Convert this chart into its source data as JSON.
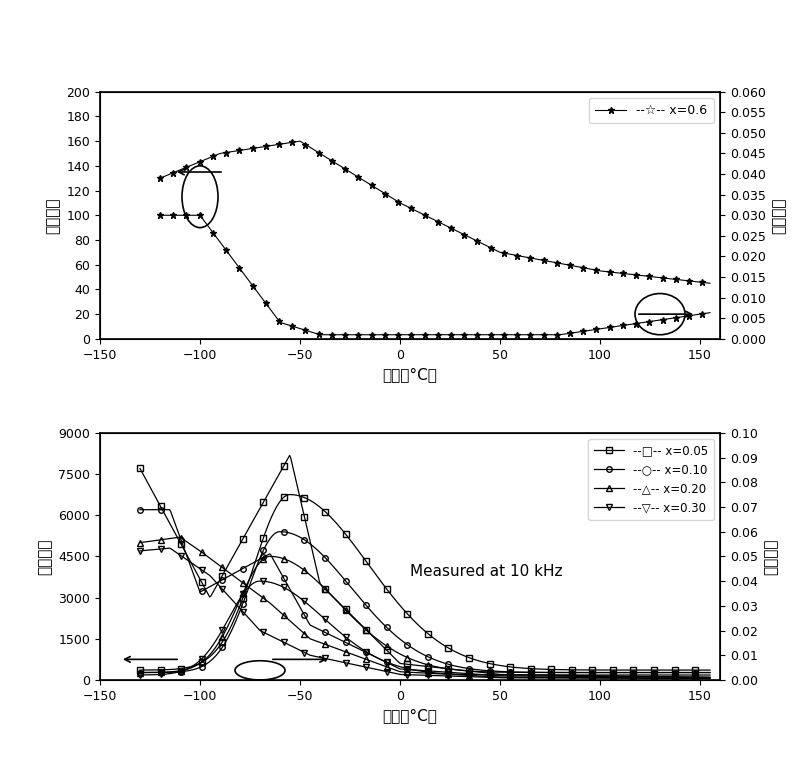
{
  "top": {
    "xlim": [
      -150,
      160
    ],
    "yleft_lim": [
      0,
      200
    ],
    "yright_lim": [
      0.0,
      0.06
    ],
    "yleft_ticks": [
      0,
      20,
      40,
      60,
      80,
      100,
      120,
      140,
      160,
      180,
      200
    ],
    "yright_ticks": [
      0.0,
      0.005,
      0.01,
      0.015,
      0.02,
      0.025,
      0.03,
      0.035,
      0.04,
      0.045,
      0.05,
      0.055,
      0.06
    ],
    "xticks": [
      -150,
      -100,
      -50,
      0,
      50,
      100,
      150
    ],
    "xlabel": "温度（°C）",
    "ylabel_left": "介电常数",
    "ylabel_right": "介电损耗",
    "legend_label": "--☆-- x=0.6"
  },
  "bottom": {
    "xlim": [
      -150,
      160
    ],
    "yleft_lim": [
      0,
      9000
    ],
    "yright_lim": [
      0.0,
      0.1
    ],
    "yleft_ticks": [
      0,
      1500,
      3000,
      4500,
      6000,
      7500,
      9000
    ],
    "yright_ticks": [
      0.0,
      0.01,
      0.02,
      0.03,
      0.04,
      0.05,
      0.06,
      0.07,
      0.08,
      0.09,
      0.1
    ],
    "xticks": [
      -150,
      -100,
      -50,
      0,
      50,
      100,
      150
    ],
    "xlabel": "温度（°C）",
    "ylabel_left": "介电常数",
    "ylabel_right": "介电损耗",
    "annotation": "Measured at 10 kHz",
    "legend_labels": [
      "--□-- x=0.05",
      "--○-- x=0.10",
      "--△-- x=0.20",
      "--▽-- x=0.30"
    ]
  },
  "figure_bg": "#ffffff"
}
